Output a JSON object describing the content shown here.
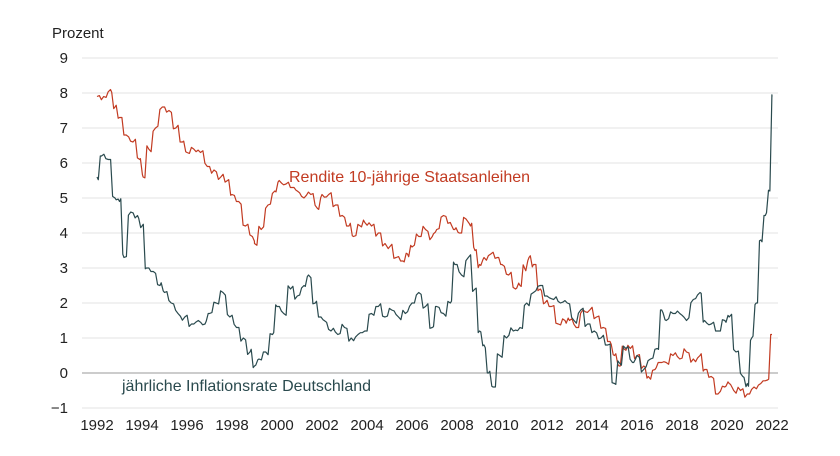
{
  "chart_data": {
    "type": "line",
    "ylabel": "Prozent",
    "ylim": [
      -1,
      9
    ],
    "xlim": [
      1992,
      2022
    ],
    "y_ticks": [
      "9",
      "8",
      "7",
      "6",
      "5",
      "4",
      "3",
      "2",
      "1",
      "0",
      "−1"
    ],
    "x_ticks": [
      "1992",
      "1994",
      "1996",
      "1998",
      "2000",
      "2002",
      "2004",
      "2006",
      "2008",
      "2010",
      "2012",
      "2014",
      "2016",
      "2018",
      "2020",
      "2022"
    ],
    "grid": true,
    "series": [
      {
        "name": "Rendite 10-jährige Staatsanleihen",
        "color": "#c23b22",
        "x": [
          1992.0,
          1992.3,
          1992.6,
          1992.8,
          1993.0,
          1993.3,
          1993.6,
          1993.9,
          1994.05,
          1994.3,
          1994.6,
          1994.9,
          1995.2,
          1995.5,
          1995.8,
          1996.0,
          1996.3,
          1996.6,
          1996.9,
          1997.2,
          1997.5,
          1997.8,
          1998.0,
          1998.3,
          1998.6,
          1998.9,
          1999.0,
          1999.3,
          1999.6,
          1999.9,
          2000.1,
          2000.4,
          2000.7,
          2000.9,
          2001.2,
          2001.5,
          2001.8,
          2002.0,
          2002.3,
          2002.6,
          2002.9,
          2003.2,
          2003.4,
          2003.7,
          2003.9,
          2004.2,
          2004.5,
          2004.8,
          2005.0,
          2005.3,
          2005.6,
          2005.8,
          2006.0,
          2006.3,
          2006.6,
          2006.9,
          2007.1,
          2007.4,
          2007.7,
          2007.9,
          2008.1,
          2008.4,
          2008.6,
          2008.8,
          2009.0,
          2009.2,
          2009.5,
          2009.8,
          2010.0,
          2010.3,
          2010.6,
          2010.8,
          2011.0,
          2011.2,
          2011.4,
          2011.7,
          2011.9,
          2012.2,
          2012.5,
          2012.8,
          2013.0,
          2013.3,
          2013.6,
          2013.9,
          2014.2,
          2014.5,
          2014.8,
          2015.0,
          2015.2,
          2015.4,
          2015.7,
          2016.0,
          2016.3,
          2016.5,
          2016.8,
          2017.0,
          2017.3,
          2017.6,
          2017.9,
          2018.2,
          2018.5,
          2018.8,
          2019.0,
          2019.3,
          2019.6,
          2019.9,
          2020.1,
          2020.3,
          2020.6,
          2020.9,
          2021.2,
          2021.5,
          2021.8,
          2022.0
        ],
        "values": [
          7.9,
          7.9,
          8.1,
          7.6,
          7.3,
          6.8,
          6.6,
          6.1,
          5.6,
          6.4,
          7.0,
          7.6,
          7.5,
          7.0,
          6.6,
          6.3,
          6.4,
          6.3,
          5.9,
          5.8,
          5.6,
          5.5,
          5.1,
          4.9,
          4.2,
          3.9,
          3.7,
          4.1,
          4.8,
          5.2,
          5.5,
          5.4,
          5.3,
          5.2,
          5.0,
          5.1,
          4.7,
          5.1,
          5.1,
          4.8,
          4.5,
          4.2,
          3.9,
          4.2,
          4.3,
          4.2,
          4.0,
          3.7,
          3.6,
          3.3,
          3.2,
          3.4,
          3.6,
          3.9,
          4.1,
          3.9,
          4.1,
          4.5,
          4.3,
          4.1,
          4.0,
          4.4,
          4.2,
          3.5,
          3.1,
          3.3,
          3.4,
          3.3,
          3.1,
          2.8,
          2.4,
          2.5,
          3.0,
          3.3,
          3.1,
          2.4,
          2.0,
          1.9,
          1.4,
          1.5,
          1.5,
          1.3,
          1.8,
          1.8,
          1.6,
          1.3,
          0.9,
          0.5,
          0.2,
          0.7,
          0.7,
          0.5,
          0.2,
          -0.1,
          0.1,
          0.3,
          0.3,
          0.5,
          0.4,
          0.6,
          0.4,
          0.5,
          0.1,
          -0.1,
          -0.6,
          -0.4,
          -0.3,
          -0.5,
          -0.5,
          -0.6,
          -0.4,
          -0.3,
          -0.2,
          1.1
        ]
      },
      {
        "name": "jährliche Inflationsrate Deutschland",
        "color": "#2a4a4e",
        "x": [
          1992.0,
          1992.2,
          1992.5,
          1992.8,
          1993.0,
          1993.2,
          1993.5,
          1993.8,
          1994.0,
          1994.2,
          1994.5,
          1994.8,
          1995.0,
          1995.3,
          1995.6,
          1995.9,
          1996.2,
          1996.5,
          1996.8,
          1997.0,
          1997.3,
          1997.6,
          1997.9,
          1998.2,
          1998.5,
          1998.8,
          1999.0,
          1999.2,
          1999.5,
          1999.8,
          2000.0,
          2000.3,
          2000.6,
          2000.9,
          2001.2,
          2001.4,
          2001.7,
          2001.9,
          2002.1,
          2002.4,
          2002.7,
          2003.0,
          2003.3,
          2003.6,
          2003.9,
          2004.2,
          2004.5,
          2004.8,
          2005.1,
          2005.4,
          2005.7,
          2006.0,
          2006.3,
          2006.6,
          2006.9,
          2007.1,
          2007.4,
          2007.7,
          2007.9,
          2008.2,
          2008.5,
          2008.8,
          2009.0,
          2009.2,
          2009.4,
          2009.6,
          2009.9,
          2010.2,
          2010.5,
          2010.8,
          2011.1,
          2011.4,
          2011.7,
          2012.0,
          2012.3,
          2012.6,
          2012.9,
          2013.2,
          2013.5,
          2013.8,
          2014.1,
          2014.4,
          2014.7,
          2015.0,
          2015.2,
          2015.5,
          2015.8,
          2016.0,
          2016.3,
          2016.6,
          2016.9,
          2017.1,
          2017.3,
          2017.6,
          2017.9,
          2018.2,
          2018.5,
          2018.8,
          2019.0,
          2019.3,
          2019.6,
          2019.9,
          2020.1,
          2020.4,
          2020.7,
          2020.9,
          2021.1,
          2021.3,
          2021.5,
          2021.7,
          2021.9,
          2022.0
        ],
        "values": [
          5.6,
          6.2,
          6.1,
          5.0,
          4.9,
          3.3,
          4.6,
          4.5,
          4.2,
          3.0,
          2.9,
          2.5,
          2.3,
          2.0,
          1.7,
          1.6,
          1.4,
          1.5,
          1.4,
          1.7,
          2.0,
          2.3,
          1.6,
          1.3,
          1.0,
          0.6,
          0.2,
          0.4,
          0.6,
          1.1,
          1.9,
          1.7,
          2.4,
          2.2,
          2.5,
          2.8,
          2.0,
          1.6,
          1.5,
          1.2,
          1.1,
          1.3,
          1.0,
          1.1,
          1.2,
          1.7,
          1.9,
          1.6,
          1.8,
          1.6,
          1.7,
          2.0,
          2.3,
          1.9,
          1.3,
          1.9,
          1.7,
          2.0,
          3.1,
          2.8,
          3.3,
          2.4,
          1.2,
          0.8,
          0.0,
          -0.4,
          0.5,
          1.0,
          1.2,
          1.3,
          2.0,
          2.3,
          2.5,
          2.2,
          2.1,
          2.0,
          2.0,
          1.5,
          1.8,
          1.4,
          1.2,
          1.0,
          0.8,
          -0.3,
          0.3,
          0.7,
          0.3,
          0.5,
          0.1,
          0.4,
          0.7,
          1.8,
          1.5,
          1.7,
          1.7,
          1.5,
          2.1,
          2.3,
          1.5,
          1.4,
          1.2,
          1.5,
          1.6,
          0.6,
          -0.1,
          -0.3,
          1.0,
          2.0,
          3.8,
          4.5,
          5.2,
          7.9
        ]
      }
    ]
  }
}
